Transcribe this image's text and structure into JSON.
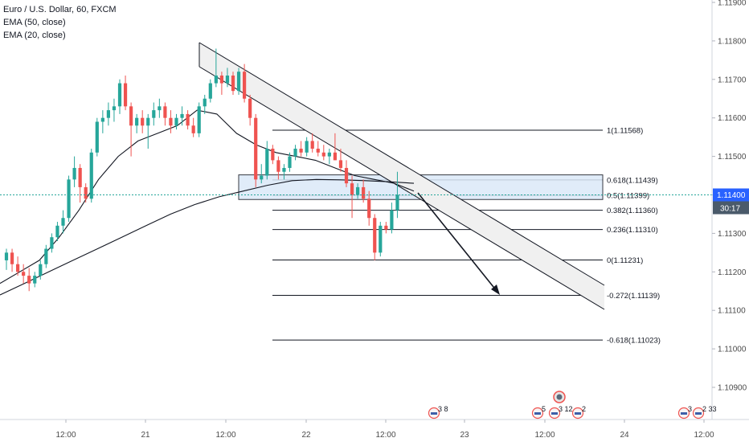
{
  "legend": {
    "symbol": "Euro / U.S. Dollar, 60, FXCM",
    "ema50": "EMA (50, close)",
    "ema20": "EMA (20, close)"
  },
  "price_axis": {
    "ticks": [
      "1.11900",
      "1.11800",
      "1.11700",
      "1.11600",
      "1.11500",
      "1.11400",
      "1.11300",
      "1.11200",
      "1.11100",
      "1.11000",
      "1.10900"
    ],
    "current_price": "1.11400",
    "countdown": "30:17"
  },
  "time_axis": {
    "ticks": [
      "12:00",
      "21",
      "12:00",
      "22",
      "12:00",
      "23",
      "12:00",
      "24",
      "12:00"
    ]
  },
  "fib_levels": [
    {
      "label": "1(1.11568)",
      "price": 1.11568
    },
    {
      "label": "0.618(1.11439)",
      "price": 1.11439
    },
    {
      "label": "0.5(1.11399)",
      "price": 1.11399
    },
    {
      "label": "0.382(1.11360)",
      "price": 1.1136
    },
    {
      "label": "0.236(1.11310)",
      "price": 1.1131
    },
    {
      "label": "0(1.11231)",
      "price": 1.11231
    },
    {
      "label": "-0.272(1.11139)",
      "price": 1.11139
    },
    {
      "label": "-0.618(1.11023)",
      "price": 1.11023
    }
  ],
  "events": [
    {
      "label": "3 8"
    },
    {
      "label": "5"
    },
    {
      "label": "3 12"
    },
    {
      "label": "2"
    },
    {
      "label": "3"
    },
    {
      "label": "2 33"
    }
  ],
  "colors": {
    "up": "#26a69a",
    "down": "#ef5350",
    "zone_fill": "#dbe9f8",
    "zone_stroke": "#131722",
    "channel_fill": "#f0f0f0",
    "price_label_bg": "#2962ff",
    "countdown_bg": "#4a5a6a"
  },
  "chart_data": {
    "type": "candlestick",
    "title": "Euro / U.S. Dollar, 60, FXCM",
    "ylim": [
      1.1084,
      1.1192
    ],
    "x_ticks": [
      "12:00",
      "21",
      "12:00",
      "22",
      "12:00",
      "23",
      "12:00",
      "24",
      "12:00"
    ],
    "candles": [
      {
        "o": 1.1123,
        "h": 1.1126,
        "l": 1.11205,
        "c": 1.1125
      },
      {
        "o": 1.1125,
        "h": 1.1126,
        "l": 1.112,
        "c": 1.1122
      },
      {
        "o": 1.1122,
        "h": 1.1124,
        "l": 1.1119,
        "c": 1.112
      },
      {
        "o": 1.112,
        "h": 1.1122,
        "l": 1.1117,
        "c": 1.1119
      },
      {
        "o": 1.1119,
        "h": 1.1121,
        "l": 1.1115,
        "c": 1.1117
      },
      {
        "o": 1.1117,
        "h": 1.112,
        "l": 1.1116,
        "c": 1.1119
      },
      {
        "o": 1.1119,
        "h": 1.1123,
        "l": 1.1118,
        "c": 1.1122
      },
      {
        "o": 1.1122,
        "h": 1.1127,
        "l": 1.1121,
        "c": 1.1126
      },
      {
        "o": 1.1126,
        "h": 1.113,
        "l": 1.1125,
        "c": 1.1129
      },
      {
        "o": 1.1129,
        "h": 1.1133,
        "l": 1.1128,
        "c": 1.1132
      },
      {
        "o": 1.1132,
        "h": 1.1136,
        "l": 1.113,
        "c": 1.1134
      },
      {
        "o": 1.1134,
        "h": 1.1145,
        "l": 1.1133,
        "c": 1.1144
      },
      {
        "o": 1.1144,
        "h": 1.115,
        "l": 1.1142,
        "c": 1.1147
      },
      {
        "o": 1.1147,
        "h": 1.1148,
        "l": 1.1138,
        "c": 1.1142
      },
      {
        "o": 1.1142,
        "h": 1.1143,
        "l": 1.1138,
        "c": 1.1139
      },
      {
        "o": 1.1139,
        "h": 1.1152,
        "l": 1.1138,
        "c": 1.1151
      },
      {
        "o": 1.1151,
        "h": 1.116,
        "l": 1.115,
        "c": 1.1159
      },
      {
        "o": 1.1159,
        "h": 1.1162,
        "l": 1.1156,
        "c": 1.116
      },
      {
        "o": 1.116,
        "h": 1.1164,
        "l": 1.1158,
        "c": 1.1162
      },
      {
        "o": 1.1162,
        "h": 1.1165,
        "l": 1.1159,
        "c": 1.1163
      },
      {
        "o": 1.1163,
        "h": 1.117,
        "l": 1.1161,
        "c": 1.1169
      },
      {
        "o": 1.1169,
        "h": 1.1171,
        "l": 1.1162,
        "c": 1.1163
      },
      {
        "o": 1.1163,
        "h": 1.1164,
        "l": 1.115,
        "c": 1.1158
      },
      {
        "o": 1.1158,
        "h": 1.1161,
        "l": 1.1156,
        "c": 1.116
      },
      {
        "o": 1.116,
        "h": 1.1162,
        "l": 1.1156,
        "c": 1.1158
      },
      {
        "o": 1.1158,
        "h": 1.1161,
        "l": 1.1152,
        "c": 1.116
      },
      {
        "o": 1.116,
        "h": 1.1164,
        "l": 1.1158,
        "c": 1.1162
      },
      {
        "o": 1.1162,
        "h": 1.1165,
        "l": 1.116,
        "c": 1.1163
      },
      {
        "o": 1.1163,
        "h": 1.1164,
        "l": 1.1158,
        "c": 1.116
      },
      {
        "o": 1.116,
        "h": 1.1162,
        "l": 1.1156,
        "c": 1.1158
      },
      {
        "o": 1.1158,
        "h": 1.1161,
        "l": 1.1157,
        "c": 1.116
      },
      {
        "o": 1.116,
        "h": 1.1163,
        "l": 1.1158,
        "c": 1.1161
      },
      {
        "o": 1.1161,
        "h": 1.1162,
        "l": 1.1157,
        "c": 1.1158
      },
      {
        "o": 1.1158,
        "h": 1.116,
        "l": 1.1155,
        "c": 1.1156
      },
      {
        "o": 1.1156,
        "h": 1.1164,
        "l": 1.1155,
        "c": 1.1163
      },
      {
        "o": 1.1163,
        "h": 1.1166,
        "l": 1.1161,
        "c": 1.1165
      },
      {
        "o": 1.1165,
        "h": 1.117,
        "l": 1.1164,
        "c": 1.1169
      },
      {
        "o": 1.1169,
        "h": 1.1178,
        "l": 1.1168,
        "c": 1.1171
      },
      {
        "o": 1.1171,
        "h": 1.1172,
        "l": 1.1166,
        "c": 1.1169
      },
      {
        "o": 1.1169,
        "h": 1.1173,
        "l": 1.1168,
        "c": 1.1171
      },
      {
        "o": 1.1171,
        "h": 1.1172,
        "l": 1.1166,
        "c": 1.1167
      },
      {
        "o": 1.1167,
        "h": 1.1173,
        "l": 1.1166,
        "c": 1.1172
      },
      {
        "o": 1.1172,
        "h": 1.1174,
        "l": 1.1164,
        "c": 1.1165
      },
      {
        "o": 1.1165,
        "h": 1.1166,
        "l": 1.1158,
        "c": 1.116
      },
      {
        "o": 1.116,
        "h": 1.1161,
        "l": 1.1142,
        "c": 1.1144
      },
      {
        "o": 1.1144,
        "h": 1.1148,
        "l": 1.1143,
        "c": 1.1145
      },
      {
        "o": 1.1145,
        "h": 1.1154,
        "l": 1.1144,
        "c": 1.1152
      },
      {
        "o": 1.1152,
        "h": 1.1153,
        "l": 1.1148,
        "c": 1.1149
      },
      {
        "o": 1.1149,
        "h": 1.115,
        "l": 1.1144,
        "c": 1.1146
      },
      {
        "o": 1.1146,
        "h": 1.1148,
        "l": 1.1144,
        "c": 1.1147
      },
      {
        "o": 1.1147,
        "h": 1.1151,
        "l": 1.1146,
        "c": 1.115
      },
      {
        "o": 1.115,
        "h": 1.1153,
        "l": 1.1149,
        "c": 1.1152
      },
      {
        "o": 1.1152,
        "h": 1.1154,
        "l": 1.115,
        "c": 1.1151
      },
      {
        "o": 1.1151,
        "h": 1.1155,
        "l": 1.115,
        "c": 1.1154
      },
      {
        "o": 1.1154,
        "h": 1.1156,
        "l": 1.1151,
        "c": 1.1152
      },
      {
        "o": 1.1152,
        "h": 1.1154,
        "l": 1.115,
        "c": 1.1151
      },
      {
        "o": 1.1151,
        "h": 1.1153,
        "l": 1.1149,
        "c": 1.115
      },
      {
        "o": 1.115,
        "h": 1.1152,
        "l": 1.1148,
        "c": 1.1151
      },
      {
        "o": 1.1151,
        "h": 1.1156,
        "l": 1.1149,
        "c": 1.1149
      },
      {
        "o": 1.1149,
        "h": 1.1152,
        "l": 1.1146,
        "c": 1.1147
      },
      {
        "o": 1.1147,
        "h": 1.1149,
        "l": 1.1142,
        "c": 1.1143
      },
      {
        "o": 1.1143,
        "h": 1.1145,
        "l": 1.1134,
        "c": 1.114
      },
      {
        "o": 1.114,
        "h": 1.1143,
        "l": 1.1139,
        "c": 1.1142
      },
      {
        "o": 1.1142,
        "h": 1.1144,
        "l": 1.1138,
        "c": 1.1139
      },
      {
        "o": 1.1139,
        "h": 1.1141,
        "l": 1.1132,
        "c": 1.1134
      },
      {
        "o": 1.1134,
        "h": 1.1135,
        "l": 1.1123,
        "c": 1.1125
      },
      {
        "o": 1.1125,
        "h": 1.1133,
        "l": 1.1124,
        "c": 1.1132
      },
      {
        "o": 1.1132,
        "h": 1.1133,
        "l": 1.113,
        "c": 1.1131
      },
      {
        "o": 1.1131,
        "h": 1.1138,
        "l": 1.113,
        "c": 1.1136
      },
      {
        "o": 1.1136,
        "h": 1.1146,
        "l": 1.1134,
        "c": 1.114
      }
    ],
    "ema50": [
      1.1114,
      1.1117,
      1.112,
      1.1123,
      1.1126,
      1.1129,
      1.1132,
      1.1135,
      1.11375,
      1.11395,
      1.1141,
      1.11425,
      1.11437,
      1.1144,
      1.11439,
      1.11437,
      1.11434,
      1.1143
    ],
    "ema20": [
      1.1117,
      1.112,
      1.1123,
      1.1129,
      1.1136,
      1.1144,
      1.115,
      1.1154,
      1.1156,
      1.1158,
      1.1162,
      1.1161,
      1.1156,
      1.1153,
      1.1151,
      1.115,
      1.1149,
      1.1147,
      1.1145,
      1.1144,
      1.1143,
      1.1141
    ]
  }
}
